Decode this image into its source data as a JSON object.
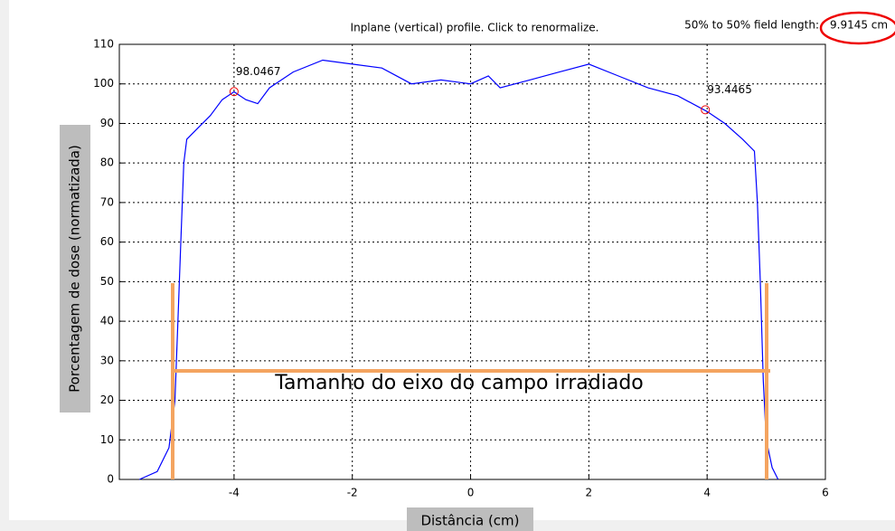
{
  "chart_data": {
    "type": "line",
    "title": "Inplane (vertical) profile.  Click to renormalize.",
    "field_length_label": "50% to 50% field length:",
    "field_length_value": "9.9145 cm",
    "xlabel": "Distância (cm)",
    "ylabel": "Porcentagem de dose (normatizada)",
    "annotation_text": "Tamanho do eixo do campo irradiado",
    "xlim": [
      -5.94,
      6
    ],
    "ylim": [
      0,
      110
    ],
    "xticks": [
      -4,
      -2,
      0,
      2,
      4,
      6
    ],
    "yticks": [
      0,
      10,
      20,
      30,
      40,
      50,
      60,
      70,
      80,
      90,
      100,
      110
    ],
    "grid": true,
    "series": [
      {
        "color": "#0000ff",
        "x": [
          -5.6,
          -5.3,
          -5.1,
          -5.0,
          -4.95,
          -4.9,
          -4.85,
          -4.8,
          -4.6,
          -4.4,
          -4.2,
          -4.0,
          -3.8,
          -3.6,
          -3.4,
          -3.0,
          -2.5,
          -2.0,
          -1.5,
          -1.0,
          -0.5,
          0,
          0.3,
          0.5,
          1.0,
          1.5,
          2.0,
          2.5,
          3.0,
          3.5,
          4.0,
          4.3,
          4.6,
          4.8,
          4.85,
          4.9,
          4.95,
          5.0,
          5.1,
          5.2
        ],
        "values": [
          0,
          2,
          8,
          20,
          40,
          60,
          80,
          86,
          89,
          92,
          96,
          98,
          96,
          95,
          99,
          103,
          106,
          105,
          104,
          100,
          101,
          100,
          102,
          99,
          101,
          103,
          105,
          102,
          99,
          97,
          93,
          90,
          86,
          83,
          70,
          50,
          25,
          10,
          3,
          0
        ]
      }
    ],
    "annotations": [
      {
        "x": -4,
        "y": 98.0467
      },
      {
        "x": 3.97,
        "y": 93.4465
      }
    ]
  }
}
